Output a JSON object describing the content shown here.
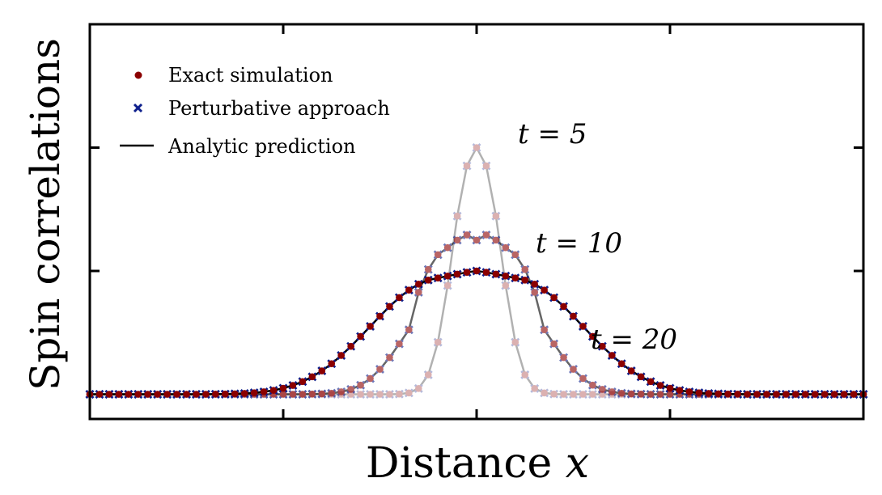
{
  "chart_data": {
    "type": "scatter",
    "title": "",
    "xlabel": "Distance",
    "xlabel_var": "x",
    "ylabel": "Spin correlations",
    "xlim": [
      -40,
      40
    ],
    "ylim": [
      -0.2,
      3.0
    ],
    "x_ticks_labeled": false,
    "y_ticks_labeled": false,
    "grid": false,
    "legend_position": "top-left",
    "legend": [
      {
        "label": "Exact simulation",
        "marker": "circle",
        "color": "#8b0000"
      },
      {
        "label": "Perturbative approach",
        "marker": "x",
        "color": "#0d1f8c"
      },
      {
        "label": "Analytic prediction",
        "marker": "line",
        "color": "#000000"
      }
    ],
    "x": [
      -40,
      -39,
      -38,
      -37,
      -36,
      -35,
      -34,
      -33,
      -32,
      -31,
      -30,
      -29,
      -28,
      -27,
      -26,
      -25,
      -24,
      -23,
      -22,
      -21,
      -20,
      -19,
      -18,
      -17,
      -16,
      -15,
      -14,
      -13,
      -12,
      -11,
      -10,
      -9,
      -8,
      -7,
      -6,
      -5,
      -4,
      -3,
      -2,
      -1,
      0,
      1,
      2,
      3,
      4,
      5,
      6,
      7,
      8,
      9,
      10,
      11,
      12,
      13,
      14,
      15,
      16,
      17,
      18,
      19,
      20,
      21,
      22,
      23,
      24,
      25,
      26,
      27,
      28,
      29,
      30,
      31,
      32,
      33,
      34,
      35,
      36,
      37,
      38,
      39,
      40
    ],
    "series": [
      {
        "time_label": "t = 5",
        "opacity": 0.3,
        "values": [
          0,
          0,
          0,
          0,
          0,
          0,
          0,
          0,
          0,
          0,
          0,
          0,
          0,
          0,
          0,
          0,
          0,
          0,
          0,
          0,
          0,
          0,
          0,
          0,
          0,
          0,
          0,
          0,
          0,
          0,
          0,
          0,
          0.002,
          0.011,
          0.047,
          0.158,
          0.422,
          0.882,
          1.445,
          1.852,
          2.0,
          1.852,
          1.445,
          0.882,
          0.422,
          0.158,
          0.047,
          0.011,
          0.002,
          0,
          0,
          0,
          0,
          0,
          0,
          0,
          0,
          0,
          0,
          0,
          0,
          0,
          0,
          0,
          0,
          0,
          0,
          0,
          0,
          0,
          0,
          0,
          0,
          0,
          0,
          0,
          0,
          0,
          0,
          0,
          0
        ]
      },
      {
        "time_label": "t = 10",
        "opacity": 0.6,
        "values": [
          0,
          0,
          0,
          0,
          0,
          0,
          0,
          0,
          0,
          0,
          0,
          0,
          0,
          0,
          0,
          0,
          0,
          0,
          0,
          0,
          0,
          0,
          0,
          0.002,
          0.004,
          0.009,
          0.02,
          0.04,
          0.074,
          0.128,
          0.203,
          0.298,
          0.409,
          0.523,
          0.827,
          1.012,
          1.132,
          1.189,
          1.25,
          1.292,
          1.25,
          1.292,
          1.25,
          1.189,
          1.132,
          1.012,
          0.827,
          0.523,
          0.409,
          0.298,
          0.203,
          0.128,
          0.074,
          0.04,
          0.02,
          0.009,
          0.004,
          0.002,
          0,
          0,
          0,
          0,
          0,
          0,
          0,
          0,
          0,
          0,
          0,
          0,
          0,
          0,
          0,
          0,
          0,
          0,
          0,
          0,
          0,
          0,
          0
        ]
      },
      {
        "time_label": "t = 20",
        "opacity": 1.0,
        "values": [
          0,
          0,
          0,
          0,
          0,
          0,
          0,
          0,
          0,
          0,
          0,
          0,
          0,
          0.001,
          0.002,
          0.004,
          0.007,
          0.012,
          0.02,
          0.032,
          0.049,
          0.072,
          0.103,
          0.142,
          0.19,
          0.248,
          0.315,
          0.389,
          0.469,
          0.551,
          0.633,
          0.712,
          0.784,
          0.845,
          0.893,
          0.926,
          0.943,
          0.959,
          0.974,
          0.989,
          1.0,
          0.989,
          0.974,
          0.959,
          0.943,
          0.926,
          0.893,
          0.845,
          0.784,
          0.712,
          0.633,
          0.551,
          0.469,
          0.389,
          0.315,
          0.248,
          0.19,
          0.142,
          0.103,
          0.072,
          0.049,
          0.032,
          0.02,
          0.012,
          0.007,
          0.004,
          0.002,
          0.001,
          0,
          0,
          0,
          0,
          0,
          0,
          0,
          0,
          0,
          0,
          0,
          0,
          0
        ]
      }
    ]
  }
}
